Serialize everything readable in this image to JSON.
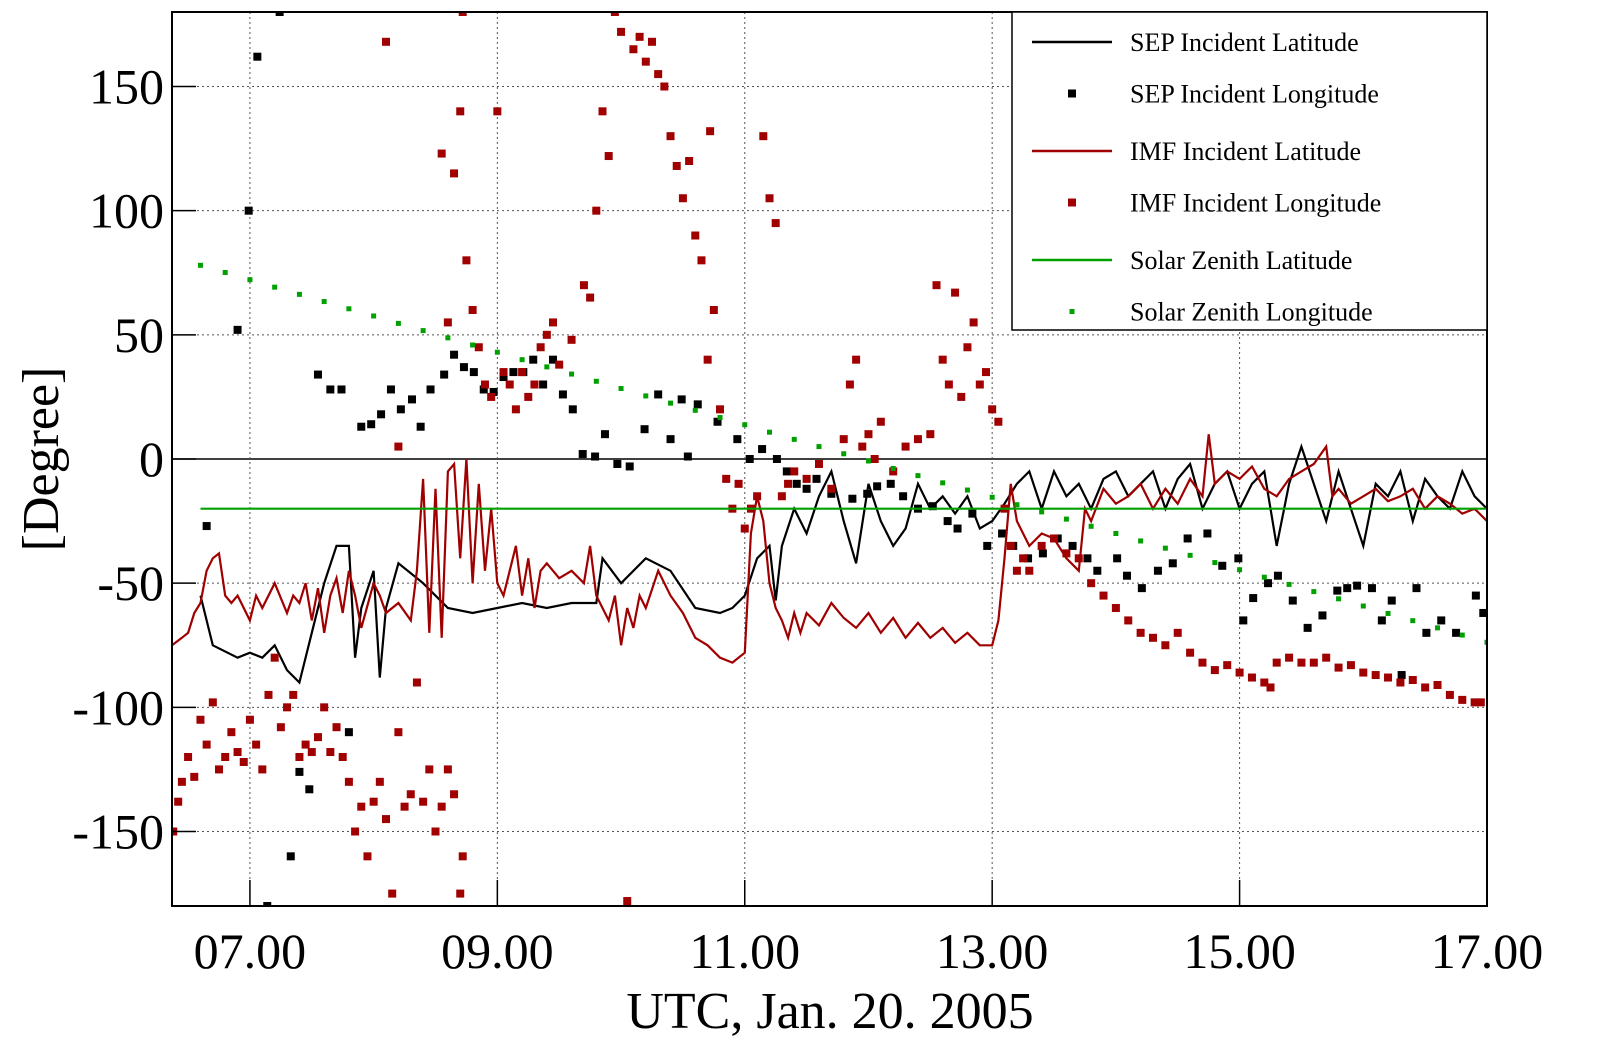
{
  "chart_data": {
    "type": "line",
    "xlabel": "UTC, Jan. 20. 2005",
    "ylabel": "[Degree]",
    "xlim": [
      6.37,
      17.0
    ],
    "ylim": [
      -180,
      180
    ],
    "xticks": [
      {
        "value": 7,
        "label": "07.00"
      },
      {
        "value": 9,
        "label": "09.00"
      },
      {
        "value": 11,
        "label": "11.00"
      },
      {
        "value": 13,
        "label": "13.00"
      },
      {
        "value": 15,
        "label": "15.00"
      },
      {
        "value": 17,
        "label": "17.00"
      }
    ],
    "yticks": [
      -150,
      -100,
      -50,
      0,
      50,
      100,
      150
    ],
    "grid": true,
    "legend": "upper right",
    "series": [
      {
        "name": "SEP Incident Latitude",
        "type": "line",
        "color": "#000000",
        "x": [
          6.6,
          6.7,
          6.9,
          7.0,
          7.1,
          7.2,
          7.3,
          7.4,
          7.5,
          7.6,
          7.7,
          7.8,
          7.85,
          7.9,
          8.0,
          8.05,
          8.1,
          8.2,
          8.4,
          8.6,
          8.8,
          9.0,
          9.2,
          9.4,
          9.6,
          9.8,
          9.85,
          10.0,
          10.2,
          10.4,
          10.6,
          10.8,
          10.9,
          11.0,
          11.1,
          11.2,
          11.25,
          11.3,
          11.4,
          11.5,
          11.6,
          11.7,
          11.8,
          11.9,
          12.0,
          12.1,
          12.2,
          12.3,
          12.4,
          12.5,
          12.6,
          12.7,
          12.8,
          12.9,
          13.0,
          13.1,
          13.2,
          13.3,
          13.4,
          13.5,
          13.6,
          13.7,
          13.8,
          13.9,
          14.0,
          14.1,
          14.2,
          14.3,
          14.4,
          14.5,
          14.6,
          14.7,
          14.8,
          14.9,
          15.0,
          15.1,
          15.2,
          15.3,
          15.4,
          15.5,
          15.6,
          15.7,
          15.8,
          15.9,
          16.0,
          16.1,
          16.2,
          16.3,
          16.4,
          16.5,
          16.6,
          16.7,
          16.8,
          16.9,
          17.0
        ],
        "values": [
          -55,
          -75,
          -80,
          -78,
          -80,
          -75,
          -85,
          -90,
          -70,
          -50,
          -35,
          -35,
          -80,
          -60,
          -45,
          -88,
          -60,
          -42,
          -50,
          -60,
          -62,
          -60,
          -58,
          -60,
          -58,
          -58,
          -40,
          -50,
          -40,
          -45,
          -60,
          -62,
          -60,
          -55,
          -40,
          -35,
          -57,
          -35,
          -20,
          -30,
          -15,
          -5,
          -25,
          -42,
          -10,
          -25,
          -35,
          -28,
          -10,
          -20,
          -15,
          -22,
          -15,
          -28,
          -25,
          -18,
          -10,
          -5,
          -20,
          -5,
          -15,
          -10,
          -20,
          -8,
          -5,
          -15,
          -10,
          -5,
          -20,
          -8,
          -2,
          -20,
          -10,
          -5,
          -20,
          -10,
          -5,
          -35,
          -10,
          5,
          -10,
          -25,
          -5,
          -20,
          -35,
          -10,
          -15,
          -5,
          -25,
          -8,
          -15,
          -20,
          -5,
          -15,
          -20
        ]
      },
      {
        "name": "SEP Incident Longitude",
        "type": "scatter",
        "color": "#000000",
        "x": [
          6.65,
          6.9,
          6.99,
          7.06,
          7.24,
          7.14,
          7.33,
          7.4,
          7.48,
          7.55,
          7.65,
          7.74,
          7.8,
          7.9,
          7.98,
          8.06,
          8.14,
          8.22,
          8.31,
          8.38,
          8.46,
          8.57,
          8.65,
          8.73,
          8.81,
          8.89,
          8.97,
          9.05,
          9.13,
          9.21,
          9.29,
          9.37,
          9.45,
          9.53,
          9.61,
          9.69,
          9.79,
          9.87,
          9.97,
          10.07,
          10.19,
          10.3,
          10.4,
          10.49,
          10.54,
          10.62,
          10.78,
          10.94,
          11.04,
          11.14,
          11.26,
          11.34,
          11.42,
          11.5,
          11.58,
          11.7,
          11.87,
          11.99,
          12.07,
          12.18,
          12.28,
          12.4,
          12.52,
          12.64,
          12.72,
          12.84,
          12.96,
          13.08,
          13.17,
          13.29,
          13.41,
          13.53,
          13.65,
          13.77,
          13.85,
          14.01,
          14.09,
          14.21,
          14.34,
          14.46,
          14.58,
          14.74,
          14.86,
          14.99,
          15.03,
          15.11,
          15.23,
          15.31,
          15.43,
          15.55,
          15.67,
          15.79,
          15.87,
          15.95,
          16.07,
          16.15,
          16.23,
          16.31,
          16.43,
          16.51,
          16.63,
          16.75,
          16.91,
          16.97
        ],
        "values": [
          -27,
          52,
          100,
          162,
          180,
          -180,
          -160,
          -126,
          -133,
          34,
          28,
          28,
          -110,
          13,
          14,
          18,
          28,
          20,
          24,
          13,
          28,
          34,
          42,
          37,
          35,
          28,
          27,
          33,
          35,
          35,
          40,
          30,
          40,
          26,
          20,
          2,
          1,
          10,
          -2,
          -3,
          12,
          26,
          8,
          24,
          1,
          22,
          15,
          8,
          0,
          4,
          0,
          -5,
          -10,
          -12,
          -8,
          -14,
          -16,
          -14,
          -11,
          -10,
          -15,
          -20,
          -19,
          -25,
          -28,
          -22,
          -35,
          -30,
          -35,
          -40,
          -38,
          -32,
          -35,
          -40,
          -45,
          -40,
          -47,
          -52,
          -45,
          -42,
          -32,
          -30,
          -43,
          -40,
          -65,
          -56,
          -50,
          -47,
          -57,
          -68,
          -63,
          -53,
          -52,
          -51,
          -52,
          -65,
          -57,
          -87,
          -52,
          -70,
          -65,
          -70,
          -55,
          -62
        ]
      },
      {
        "name": "IMF Incident Latitude",
        "type": "line",
        "color": "#a00000",
        "x": [
          6.37,
          6.45,
          6.5,
          6.55,
          6.6,
          6.65,
          6.7,
          6.75,
          6.8,
          6.85,
          6.9,
          7.0,
          7.05,
          7.1,
          7.2,
          7.3,
          7.35,
          7.4,
          7.45,
          7.5,
          7.55,
          7.6,
          7.65,
          7.7,
          7.75,
          7.8,
          7.85,
          7.9,
          8.0,
          8.05,
          8.1,
          8.2,
          8.3,
          8.35,
          8.4,
          8.45,
          8.5,
          8.55,
          8.6,
          8.65,
          8.7,
          8.75,
          8.8,
          8.85,
          8.9,
          8.95,
          9.0,
          9.05,
          9.1,
          9.15,
          9.2,
          9.25,
          9.3,
          9.35,
          9.4,
          9.5,
          9.6,
          9.7,
          9.75,
          9.8,
          9.85,
          9.9,
          9.95,
          10.0,
          10.05,
          10.1,
          10.15,
          10.2,
          10.3,
          10.4,
          10.5,
          10.6,
          10.7,
          10.8,
          10.9,
          11.0,
          11.05,
          11.1,
          11.15,
          11.2,
          11.25,
          11.3,
          11.35,
          11.4,
          11.45,
          11.5,
          11.6,
          11.7,
          11.8,
          11.9,
          12.0,
          12.1,
          12.2,
          12.3,
          12.4,
          12.5,
          12.6,
          12.7,
          12.8,
          12.9,
          13.0,
          13.05,
          13.1,
          13.15,
          13.2,
          13.3,
          13.4,
          13.5,
          13.6,
          13.7,
          13.75,
          13.8,
          13.9,
          14.0,
          14.1,
          14.2,
          14.3,
          14.4,
          14.5,
          14.6,
          14.7,
          14.75,
          14.8,
          14.9,
          15.0,
          15.1,
          15.2,
          15.3,
          15.4,
          15.5,
          15.6,
          15.7,
          15.75,
          15.8,
          15.9,
          16.0,
          16.1,
          16.2,
          16.3,
          16.4,
          16.5,
          16.6,
          16.7,
          16.8,
          16.9,
          17.0
        ],
        "values": [
          -75,
          -72,
          -70,
          -62,
          -58,
          -45,
          -40,
          -38,
          -55,
          -58,
          -55,
          -65,
          -55,
          -60,
          -50,
          -62,
          -55,
          -58,
          -50,
          -65,
          -52,
          -70,
          -55,
          -48,
          -62,
          -45,
          -55,
          -68,
          -50,
          -55,
          -62,
          -58,
          -65,
          -45,
          -8,
          -70,
          -12,
          -72,
          -5,
          -2,
          -40,
          0,
          -50,
          -10,
          -45,
          -20,
          -50,
          -55,
          -45,
          -35,
          -55,
          -40,
          -60,
          -45,
          -42,
          -48,
          -45,
          -50,
          -35,
          -55,
          -60,
          -65,
          -55,
          -75,
          -60,
          -68,
          -55,
          -60,
          -45,
          -55,
          -62,
          -72,
          -75,
          -80,
          -82,
          -78,
          -30,
          -15,
          -25,
          -50,
          -60,
          -65,
          -72,
          -62,
          -70,
          -62,
          -67,
          -58,
          -64,
          -68,
          -62,
          -70,
          -64,
          -72,
          -66,
          -72,
          -68,
          -74,
          -70,
          -75,
          -75,
          -65,
          -40,
          -10,
          -25,
          -35,
          -30,
          -32,
          -40,
          -45,
          -20,
          -25,
          -12,
          -18,
          -15,
          -10,
          -20,
          -12,
          -18,
          -8,
          -15,
          10,
          -10,
          -5,
          -8,
          -3,
          -12,
          -15,
          -8,
          -5,
          -2,
          5,
          -15,
          -12,
          -18,
          -15,
          -12,
          -17,
          -15,
          -12,
          -20,
          -15,
          -18,
          -22,
          -20,
          -25
        ]
      },
      {
        "name": "IMF Incident Longitude",
        "type": "scatter",
        "color": "#a00000",
        "x": [
          6.38,
          6.42,
          6.45,
          6.5,
          6.55,
          6.6,
          6.65,
          6.7,
          6.75,
          6.8,
          6.85,
          6.9,
          6.95,
          7.0,
          7.05,
          7.1,
          7.15,
          7.2,
          7.25,
          7.3,
          7.35,
          7.4,
          7.45,
          7.5,
          7.55,
          7.6,
          7.65,
          7.7,
          7.75,
          7.8,
          7.85,
          7.9,
          7.95,
          8.0,
          8.05,
          8.1,
          8.15,
          8.2,
          8.25,
          8.3,
          8.35,
          8.4,
          8.45,
          8.5,
          8.55,
          8.6,
          8.65,
          8.7,
          8.72,
          8.1,
          8.2,
          8.55,
          8.6,
          8.65,
          8.7,
          8.72,
          8.75,
          8.8,
          8.85,
          8.9,
          8.95,
          9.0,
          9.05,
          9.1,
          9.15,
          9.2,
          9.25,
          9.3,
          9.35,
          9.4,
          9.45,
          9.5,
          9.6,
          9.7,
          9.75,
          9.8,
          9.85,
          9.9,
          9.95,
          10.0,
          10.05,
          10.1,
          10.15,
          10.2,
          10.25,
          10.3,
          10.35,
          10.4,
          10.45,
          10.5,
          10.55,
          10.6,
          10.65,
          10.7,
          10.72,
          10.75,
          10.8,
          10.85,
          10.9,
          10.95,
          11.0,
          11.05,
          11.1,
          11.15,
          11.2,
          11.25,
          11.3,
          11.35,
          11.4,
          11.5,
          11.6,
          11.7,
          11.8,
          11.85,
          11.9,
          11.95,
          12.0,
          12.05,
          12.1,
          12.2,
          12.3,
          12.4,
          12.5,
          12.55,
          12.6,
          12.65,
          12.7,
          12.75,
          12.8,
          12.85,
          12.9,
          12.95,
          13.0,
          13.05,
          13.1,
          13.15,
          13.2,
          13.25,
          13.3,
          13.4,
          13.5,
          13.6,
          13.7,
          13.8,
          13.9,
          14.0,
          14.1,
          14.2,
          14.3,
          14.4,
          14.5,
          14.6,
          14.7,
          14.8,
          14.9,
          15.0,
          15.1,
          15.2,
          15.25,
          15.3,
          15.4,
          15.5,
          15.6,
          15.7,
          15.8,
          15.9,
          16.0,
          16.1,
          16.2,
          16.3,
          16.4,
          16.5,
          16.6,
          16.7,
          16.8,
          16.9,
          16.95
        ],
        "values": [
          -150,
          -138,
          -130,
          -120,
          -128,
          -105,
          -115,
          -98,
          -125,
          -120,
          -110,
          -118,
          -122,
          -105,
          -115,
          -125,
          -95,
          -80,
          -108,
          -100,
          -95,
          -120,
          -115,
          -118,
          -112,
          -100,
          -118,
          -108,
          -120,
          -130,
          -150,
          -140,
          -160,
          -138,
          -130,
          -145,
          -175,
          -110,
          -140,
          -135,
          -90,
          -138,
          -125,
          -150,
          -140,
          -125,
          -135,
          -175,
          -160,
          168,
          5,
          123,
          55,
          115,
          140,
          180,
          80,
          60,
          45,
          30,
          25,
          140,
          35,
          30,
          20,
          35,
          25,
          30,
          45,
          50,
          55,
          38,
          48,
          70,
          65,
          100,
          140,
          122,
          180,
          172,
          -178,
          165,
          170,
          160,
          168,
          155,
          150,
          130,
          118,
          105,
          120,
          90,
          80,
          40,
          132,
          60,
          20,
          -8,
          -20,
          -10,
          -28,
          -20,
          -15,
          130,
          105,
          95,
          -15,
          -10,
          -5,
          -8,
          -2,
          -12,
          8,
          30,
          40,
          5,
          10,
          0,
          15,
          -5,
          5,
          8,
          10,
          70,
          40,
          30,
          67,
          25,
          45,
          55,
          30,
          35,
          20,
          15,
          -20,
          -35,
          -45,
          -40,
          -45,
          -35,
          -32,
          -38,
          -40,
          -50,
          -55,
          -60,
          -65,
          -70,
          -72,
          -75,
          -70,
          -78,
          -82,
          -85,
          -83,
          -86,
          -88,
          -90,
          -92,
          -82,
          -80,
          -82,
          -82,
          -80,
          -84,
          -83,
          -86,
          -87,
          -88,
          -90,
          -89,
          -92,
          -91,
          -95,
          -97,
          -98,
          -98
        ]
      },
      {
        "name": "Solar Zenith Latitude",
        "type": "line",
        "color": "#00a000",
        "x": [
          6.6,
          17.0
        ],
        "values": [
          -20,
          -20
        ]
      },
      {
        "name": "Solar Zenith  Longitude",
        "type": "scatter",
        "color": "#00a000",
        "x": [
          6.6,
          6.8,
          7.0,
          7.2,
          7.4,
          7.6,
          7.8,
          8.0,
          8.2,
          8.4,
          8.6,
          8.8,
          9.0,
          9.2,
          9.4,
          9.6,
          9.8,
          10.0,
          10.2,
          10.4,
          10.6,
          10.8,
          11.0,
          11.2,
          11.4,
          11.6,
          11.8,
          12.0,
          12.2,
          12.4,
          12.6,
          12.8,
          13.0,
          13.2,
          13.4,
          13.6,
          13.8,
          14.0,
          14.2,
          14.4,
          14.6,
          14.8,
          15.0,
          15.2,
          15.4,
          15.6,
          15.8,
          16.0,
          16.2,
          16.4,
          16.6,
          16.8,
          17.0
        ],
        "values": [
          78,
          75.1,
          72.2,
          69.2,
          66.3,
          63.4,
          60.5,
          57.6,
          54.6,
          51.7,
          48.8,
          45.9,
          43.0,
          40.0,
          37.1,
          34.2,
          31.3,
          28.4,
          25.4,
          22.5,
          19.6,
          16.7,
          13.8,
          10.8,
          7.9,
          5.0,
          2.1,
          -0.8,
          -3.8,
          -6.7,
          -9.6,
          -12.5,
          -15.4,
          -18.4,
          -21.3,
          -24.2,
          -27.1,
          -30.0,
          -33.0,
          -35.9,
          -38.8,
          -41.7,
          -44.6,
          -47.6,
          -50.5,
          -53.4,
          -56.3,
          -59.2,
          -62.2,
          -65.1,
          -68.0,
          -70.9,
          -73.8
        ]
      }
    ]
  }
}
